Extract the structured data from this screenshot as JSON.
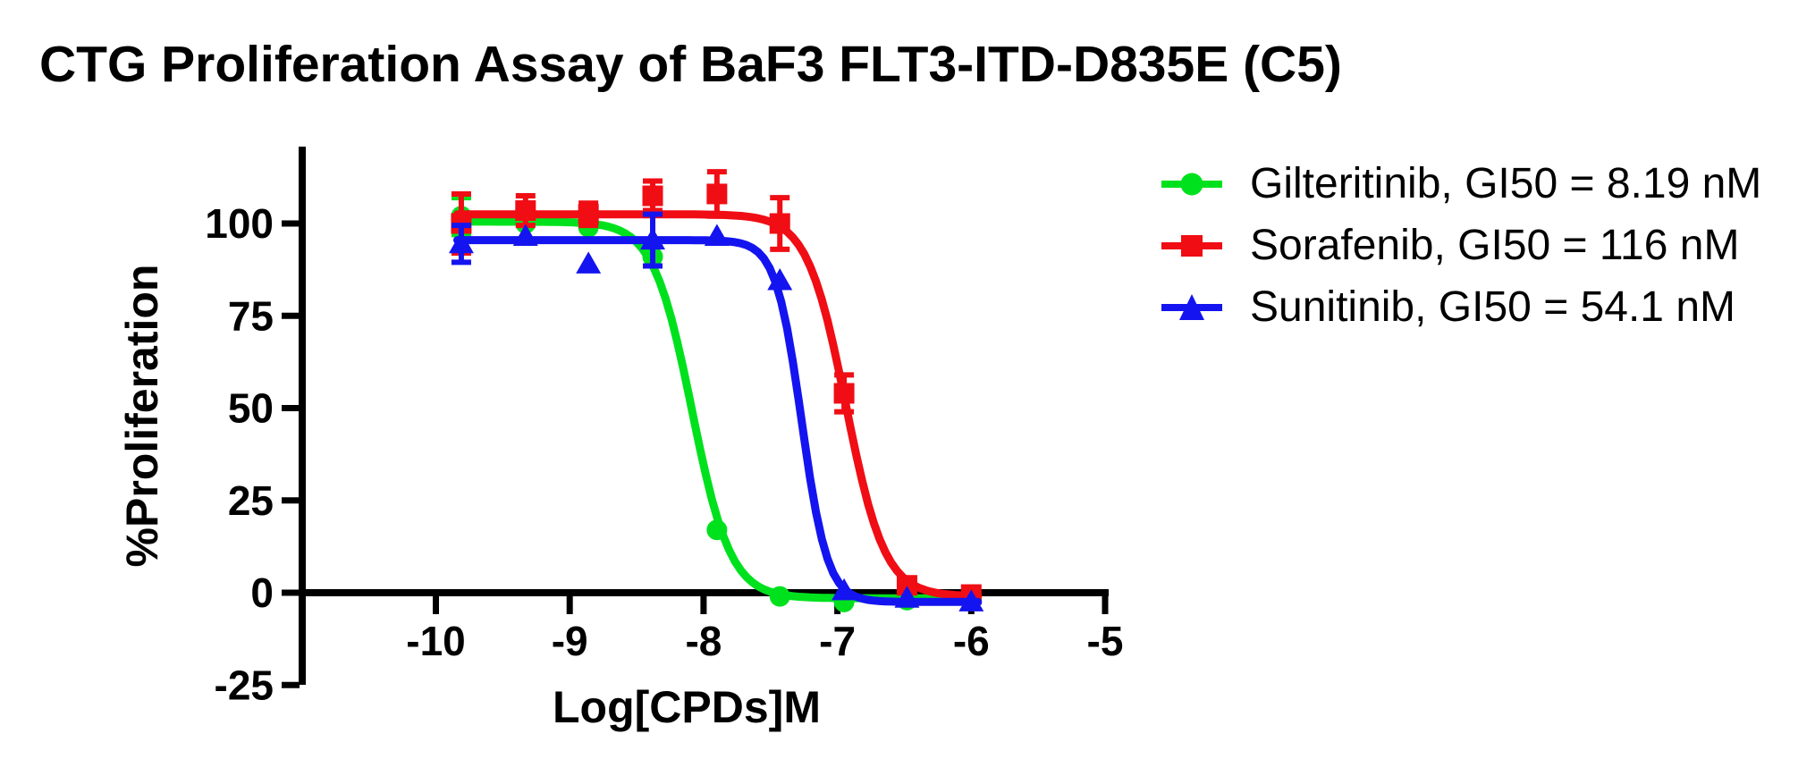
{
  "title": "CTG Proliferation Assay of BaF3 FLT3-ITD-D835E (C5)",
  "chart_data": {
    "type": "scatter",
    "title": "CTG Proliferation Assay of BaF3 FLT3-ITD-D835E (C5)",
    "xlabel": "Log[CPDs]M",
    "ylabel": "%Proliferation",
    "xlim": [
      -11,
      -5
    ],
    "ylim": [
      -25,
      121
    ],
    "xticks": [
      "-10",
      "-9",
      "-8",
      "-7",
      "-6",
      "-5"
    ],
    "xtick_values": [
      -10,
      -9,
      -8,
      -7,
      -6,
      -5
    ],
    "yticks": [
      "100",
      "75",
      "50",
      "25",
      "0",
      "-25"
    ],
    "ytick_values": [
      100,
      75,
      50,
      25,
      0,
      -25
    ],
    "grid": false,
    "background": "#ffffff",
    "axis_color": "#000000",
    "legend_position": "right-outside-top",
    "x": [
      -9.81,
      -9.33,
      -8.86,
      -8.38,
      -7.9,
      -7.43,
      -6.95,
      -6.48,
      -6.0
    ],
    "series": [
      {
        "name": "Gilteritinib",
        "label": "Gilteritinib, GI50 = 8.19 nM",
        "gi50_nM": 8.19,
        "color": "#00e11e",
        "marker": "circle",
        "values": [
          102,
          100,
          99,
          91,
          17,
          -1,
          -2.5,
          -2,
          -2
        ],
        "errors": [
          5,
          0,
          0,
          0,
          0,
          0,
          0,
          0,
          0
        ],
        "fit": {
          "top": 100.5,
          "bottom": -1.5,
          "log_gi50": -8.087,
          "hill": 3.0
        }
      },
      {
        "name": "Sorafenib",
        "label": "Sorafenib, GI50 = 116 nM",
        "gi50_nM": 116,
        "color": "#f00d14",
        "marker": "square",
        "values": [
          100,
          103.5,
          102.5,
          107.5,
          108,
          100,
          54,
          2,
          -0.5
        ],
        "errors": [
          8,
          4,
          3,
          4,
          6,
          7,
          5,
          0,
          0
        ],
        "fit": {
          "top": 102.5,
          "bottom": -1,
          "log_gi50": -6.936,
          "hill": 3.0
        }
      },
      {
        "name": "Sunitinib",
        "label": "Sunitinib, GI50 = 54.1 nM",
        "gi50_nM": 54.1,
        "color": "#1414f0",
        "marker": "triangle",
        "values": [
          94.5,
          96.5,
          89,
          95.5,
          96.5,
          84.5,
          0.5,
          -1.5,
          -2.5
        ],
        "errors": [
          5,
          0,
          0,
          7,
          0,
          0,
          0,
          0,
          0
        ],
        "fit": {
          "top": 95.5,
          "bottom": -2.5,
          "log_gi50": -7.267,
          "hill": 4.5
        }
      }
    ],
    "curve_x_range": [
      -9.84,
      -5.95
    ]
  }
}
